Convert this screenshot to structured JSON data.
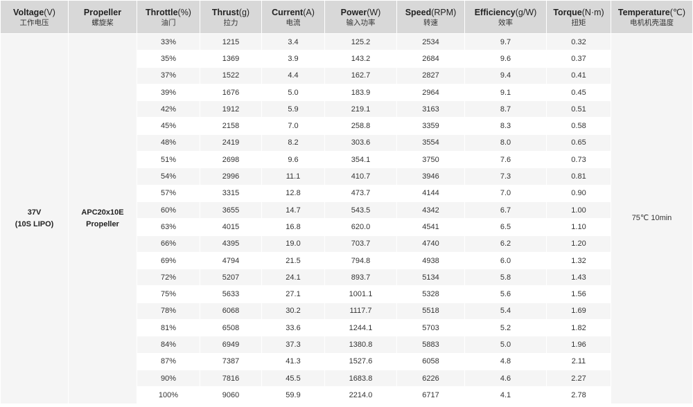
{
  "headers": [
    {
      "en": "Voltage",
      "unit": "(V)",
      "zh": "工作电压"
    },
    {
      "en": "Propeller",
      "unit": "",
      "zh": "螺旋桨"
    },
    {
      "en": "Throttle",
      "unit": "(%)",
      "zh": "油门"
    },
    {
      "en": "Thrust",
      "unit": "(g)",
      "zh": "拉力"
    },
    {
      "en": "Current",
      "unit": "(A)",
      "zh": "电流"
    },
    {
      "en": "Power",
      "unit": "(W)",
      "zh": "输入功率"
    },
    {
      "en": "Speed",
      "unit": "(RPM)",
      "zh": "转速"
    },
    {
      "en": "Efficiency",
      "unit": "(g/W)",
      "zh": "效率"
    },
    {
      "en": "Torque",
      "unit": "(N·m)",
      "zh": "扭矩"
    },
    {
      "en": "Temperature",
      "unit": "(℃)",
      "zh": "电机机壳温度"
    }
  ],
  "voltage": {
    "line1": "37V",
    "line2": "(10S LIPO)"
  },
  "propeller": {
    "line1": "APC20x10E",
    "line2": "Propeller"
  },
  "temperature": "75℃  10min",
  "rows": [
    [
      "33%",
      "1215",
      "3.4",
      "125.2",
      "2534",
      "9.7",
      "0.32"
    ],
    [
      "35%",
      "1369",
      "3.9",
      "143.2",
      "2684",
      "9.6",
      "0.37"
    ],
    [
      "37%",
      "1522",
      "4.4",
      "162.7",
      "2827",
      "9.4",
      "0.41"
    ],
    [
      "39%",
      "1676",
      "5.0",
      "183.9",
      "2964",
      "9.1",
      "0.45"
    ],
    [
      "42%",
      "1912",
      "5.9",
      "219.1",
      "3163",
      "8.7",
      "0.51"
    ],
    [
      "45%",
      "2158",
      "7.0",
      "258.8",
      "3359",
      "8.3",
      "0.58"
    ],
    [
      "48%",
      "2419",
      "8.2",
      "303.6",
      "3554",
      "8.0",
      "0.65"
    ],
    [
      "51%",
      "2698",
      "9.6",
      "354.1",
      "3750",
      "7.6",
      "0.73"
    ],
    [
      "54%",
      "2996",
      "11.1",
      "410.7",
      "3946",
      "7.3",
      "0.81"
    ],
    [
      "57%",
      "3315",
      "12.8",
      "473.7",
      "4144",
      "7.0",
      "0.90"
    ],
    [
      "60%",
      "3655",
      "14.7",
      "543.5",
      "4342",
      "6.7",
      "1.00"
    ],
    [
      "63%",
      "4015",
      "16.8",
      "620.0",
      "4541",
      "6.5",
      "1.10"
    ],
    [
      "66%",
      "4395",
      "19.0",
      "703.7",
      "4740",
      "6.2",
      "1.20"
    ],
    [
      "69%",
      "4794",
      "21.5",
      "794.8",
      "4938",
      "6.0",
      "1.32"
    ],
    [
      "72%",
      "5207",
      "24.1",
      "893.7",
      "5134",
      "5.8",
      "1.43"
    ],
    [
      "75%",
      "5633",
      "27.1",
      "1001.1",
      "5328",
      "5.6",
      "1.56"
    ],
    [
      "78%",
      "6068",
      "30.2",
      "1117.7",
      "5518",
      "5.4",
      "1.69"
    ],
    [
      "81%",
      "6508",
      "33.6",
      "1244.1",
      "5703",
      "5.2",
      "1.82"
    ],
    [
      "84%",
      "6949",
      "37.3",
      "1380.8",
      "5883",
      "5.0",
      "1.96"
    ],
    [
      "87%",
      "7387",
      "41.3",
      "1527.6",
      "6058",
      "4.8",
      "2.11"
    ],
    [
      "90%",
      "7816",
      "45.5",
      "1683.8",
      "6226",
      "4.6",
      "2.27"
    ],
    [
      "100%",
      "9060",
      "59.9",
      "2214.0",
      "6717",
      "4.1",
      "2.78"
    ]
  ],
  "colors": {
    "header_bg": "#d8d8d8",
    "row_alt_bg": "#f5f5f5",
    "row_bg": "#ffffff",
    "text": "#333333"
  }
}
